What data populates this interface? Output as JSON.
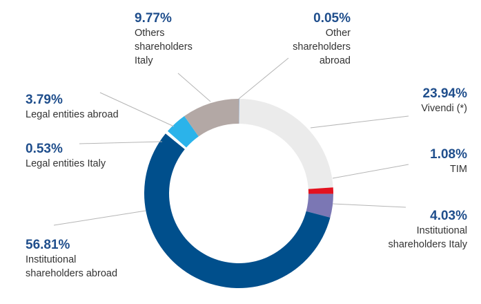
{
  "chart_data": {
    "type": "pie",
    "donut": true,
    "legend": "none",
    "title": "",
    "slices": [
      {
        "label_lines": [
          "Other",
          "shareholders",
          "abroad"
        ],
        "value": 0.05,
        "value_label": "0.05%",
        "color": "#1f4e8c"
      },
      {
        "label_lines": [
          "Vivendi (*)"
        ],
        "value": 23.94,
        "value_label": "23.94%",
        "color": "#ebebeb"
      },
      {
        "label_lines": [
          "TIM"
        ],
        "value": 1.08,
        "value_label": "1.08%",
        "color": "#e2121f"
      },
      {
        "label_lines": [
          "Institutional",
          "shareholders Italy"
        ],
        "value": 4.03,
        "value_label": "4.03%",
        "color": "#7b77b4"
      },
      {
        "label_lines": [
          "Institutional",
          "shareholders abroad"
        ],
        "value": 56.81,
        "value_label": "56.81%",
        "color": "#004f8c"
      },
      {
        "label_lines": [
          "Legal entities Italy"
        ],
        "value": 0.53,
        "value_label": "0.53%",
        "color": "#ffffff"
      },
      {
        "label_lines": [
          "Legal entities abroad"
        ],
        "value": 3.79,
        "value_label": "3.79%",
        "color": "#2bb3ea"
      },
      {
        "label_lines": [
          "Others",
          "shareholders",
          "Italy"
        ],
        "value": 9.77,
        "value_label": "9.77%",
        "color": "#b3a8a5"
      }
    ]
  }
}
